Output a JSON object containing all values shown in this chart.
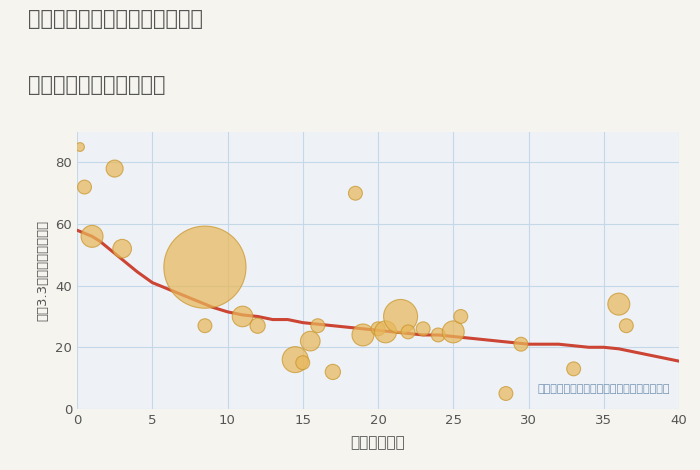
{
  "title_line1": "三重県松阪市嬉野川原木造町の",
  "title_line2": "築年数別中古戸建て価格",
  "xlabel": "築年数（年）",
  "ylabel": "坪（3.3㎡）単価（万円）",
  "background_color": "#f5f4ee",
  "plot_bg_color": "#eef2f7",
  "grid_color": "#c5d8e8",
  "xlim": [
    0,
    40
  ],
  "ylim": [
    0,
    90
  ],
  "xticks": [
    0,
    5,
    10,
    15,
    20,
    25,
    30,
    35,
    40
  ],
  "yticks": [
    0,
    20,
    40,
    60,
    80
  ],
  "annotation": "円の大きさは、取引のあった物件面積を示す",
  "scatter_x": [
    0.2,
    0.5,
    1.0,
    2.5,
    3.0,
    8.5,
    8.5,
    11.0,
    12.0,
    14.5,
    15.0,
    15.5,
    16.0,
    17.0,
    18.5,
    19.0,
    20.0,
    20.5,
    21.5,
    22.0,
    23.0,
    24.0,
    25.0,
    25.5,
    28.5,
    29.5,
    33.0,
    36.0,
    36.5
  ],
  "scatter_y": [
    85,
    72,
    56,
    78,
    52,
    46,
    27,
    30,
    27,
    16,
    15,
    22,
    27,
    12,
    70,
    24,
    26,
    25,
    30,
    25,
    26,
    24,
    25,
    30,
    5,
    21,
    13,
    34,
    27
  ],
  "scatter_size": [
    40,
    100,
    250,
    150,
    180,
    3500,
    100,
    220,
    120,
    350,
    100,
    200,
    100,
    120,
    100,
    250,
    100,
    250,
    600,
    100,
    100,
    100,
    250,
    100,
    100,
    100,
    100,
    250,
    100
  ],
  "scatter_color": "#e8b75a",
  "scatter_alpha": 0.72,
  "scatter_edge_color": "#c9952a",
  "line_x": [
    0,
    0.5,
    1,
    1.5,
    2,
    2.5,
    3,
    4,
    5,
    6,
    7,
    8,
    9,
    10,
    11,
    12,
    13,
    14,
    15,
    16,
    17,
    18,
    19,
    20,
    21,
    22,
    23,
    24,
    25,
    26,
    27,
    28,
    29,
    30,
    31,
    32,
    33,
    34,
    35,
    36,
    37,
    38,
    39,
    40
  ],
  "line_y": [
    58,
    57,
    56,
    54.5,
    52.5,
    50.5,
    48.5,
    44.5,
    41,
    39,
    37,
    35,
    33,
    31.5,
    30.5,
    30,
    29,
    29,
    28,
    27.5,
    27,
    26.5,
    26,
    25.5,
    25,
    24.5,
    24,
    24,
    23.5,
    23,
    22.5,
    22,
    21.5,
    21,
    21,
    21,
    20.5,
    20,
    20,
    19.5,
    18.5,
    17.5,
    16.5,
    15.5
  ],
  "line_color": "#cc4433",
  "line_width": 2.2,
  "title_color": "#555555",
  "axis_label_color": "#555555",
  "tick_color": "#555555",
  "annot_color": "#7090b0"
}
